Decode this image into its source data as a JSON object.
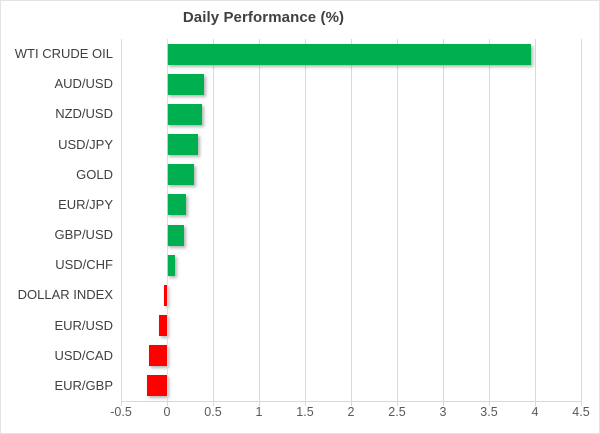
{
  "chart_data": {
    "type": "bar",
    "orientation": "horizontal",
    "title": "Daily Performance (%)",
    "categories": [
      "WTI CRUDE OIL",
      "AUD/USD",
      "NZD/USD",
      "USD/JPY",
      "GOLD",
      "EUR/JPY",
      "GBP/USD",
      "USD/CHF",
      "DOLLAR INDEX",
      "EUR/USD",
      "USD/CAD",
      "EUR/GBP"
    ],
    "values": [
      3.96,
      0.4,
      0.38,
      0.34,
      0.29,
      0.21,
      0.18,
      0.09,
      -0.03,
      -0.09,
      -0.2,
      -0.22
    ],
    "xlabel": "",
    "ylabel": "",
    "xlim": [
      -0.5,
      4.5
    ],
    "xticks": [
      -0.5,
      0,
      0.5,
      1,
      1.5,
      2,
      2.5,
      3,
      3.5,
      4,
      4.5
    ],
    "xtick_labels": [
      "-0.5",
      "0",
      "0.5",
      "1",
      "1.5",
      "2",
      "2.5",
      "3",
      "3.5",
      "4",
      "4.5"
    ],
    "grid": "vertical",
    "legend": "none",
    "colors": {
      "positive_bar": "#00B050",
      "negative_bar": "#FF0000",
      "gridline": "#D9D9D9",
      "title_text": "#404040",
      "category_text": "#404040",
      "tick_text": "#595959"
    }
  }
}
